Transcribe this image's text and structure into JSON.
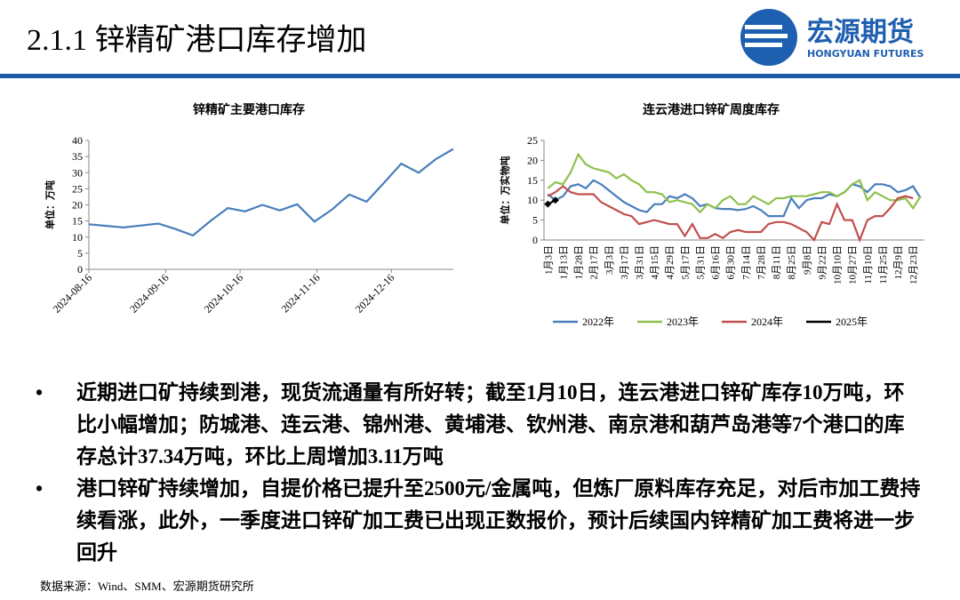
{
  "header": {
    "title": "2.1.1 锌精矿港口库存增加",
    "logo_cn": "宏源期货",
    "logo_en": "HONGYUAN FUTURES"
  },
  "chart_data": [
    {
      "type": "line",
      "title": "锌精矿主要港口库存",
      "y_label": "单位：万吨",
      "color": "#4a7ebb",
      "x": [
        "2024-08-16",
        "2024-08-23",
        "2024-08-30",
        "2024-09-06",
        "2024-09-13",
        "2024-09-20",
        "2024-09-27",
        "2024-10-04",
        "2024-10-11",
        "2024-10-18",
        "2024-10-25",
        "2024-11-01",
        "2024-11-08",
        "2024-11-15",
        "2024-11-22",
        "2024-11-29",
        "2024-12-06",
        "2024-12-13",
        "2024-12-20",
        "2024-12-27",
        "2025-01-03",
        "2025-01-10"
      ],
      "values": [
        14,
        13.5,
        13,
        13.6,
        14.2,
        12.5,
        10.5,
        15,
        19,
        18,
        20,
        18.3,
        20.2,
        14.8,
        18.5,
        23.2,
        21,
        26.8,
        32.8,
        30,
        34.23,
        37.34
      ],
      "xlim": [
        "2024-08-16",
        "2025-01-10"
      ],
      "xticks": [
        "2024-08-16",
        "2024-09-16",
        "2024-10-16",
        "2024-11-16",
        "2024-12-16"
      ],
      "ylim": [
        0,
        40
      ],
      "yticks": [
        0,
        5,
        10,
        15,
        20,
        25,
        30,
        35,
        40
      ],
      "grid": false
    },
    {
      "type": "line",
      "title": "连云港进口锌矿周度库存",
      "y_label": "单位：万实物吨",
      "categories": [
        "1月3日",
        null,
        "1月13日",
        null,
        "1月28日",
        null,
        "2月17日",
        null,
        "3月3日",
        null,
        "3月17日",
        null,
        "3月31日",
        null,
        "4月15日",
        null,
        "4月29日",
        null,
        "5月17日",
        null,
        "5月31日",
        null,
        "6月16日",
        null,
        "6月30日",
        null,
        "7月14日",
        null,
        "7月28日",
        null,
        "8月11日",
        null,
        "8月25日",
        null,
        "9月8日",
        null,
        "9月22日",
        null,
        "10月10日",
        null,
        "10月27日",
        null,
        "11月10日",
        null,
        "11月25日",
        null,
        "12月9日",
        null,
        "12月23日",
        null
      ],
      "series": [
        {
          "name": "2022年",
          "color": "#4a7ebb",
          "values": [
            11.5,
            10,
            11,
            13.5,
            14,
            13,
            15,
            14,
            12.5,
            11,
            9.5,
            8.5,
            7.5,
            7,
            9,
            9,
            11,
            10.5,
            11.5,
            10.5,
            8.5,
            9,
            8,
            7.8,
            7.8,
            7.5,
            7.8,
            8.5,
            7.5,
            6,
            6,
            6,
            10.5,
            8,
            10,
            10.5,
            10.5,
            11.5,
            11,
            12,
            14,
            13.5,
            12,
            14,
            14,
            13.5,
            12,
            12.5,
            13.5,
            10.5
          ]
        },
        {
          "name": "2023年",
          "color": "#8fc04f",
          "values": [
            13,
            14.5,
            14,
            17,
            21.5,
            19,
            18,
            17.5,
            17,
            15.5,
            16.5,
            15,
            14,
            12,
            12,
            11.5,
            9.5,
            10,
            9.5,
            9,
            7,
            9,
            8,
            10,
            11,
            9,
            9,
            11,
            10,
            9,
            10.5,
            10.5,
            11,
            11,
            11,
            11.5,
            12,
            12,
            11,
            12,
            14,
            15,
            10,
            12,
            11,
            10,
            10,
            10.5,
            8,
            11
          ]
        },
        {
          "name": "2024年",
          "color": "#c0504d",
          "values": [
            11,
            12,
            13.5,
            12,
            11.5,
            11.5,
            11.5,
            9.5,
            8.5,
            7.5,
            6.5,
            6,
            4,
            4.5,
            5,
            4.5,
            4,
            4,
            1,
            4,
            0.5,
            0.5,
            1.5,
            0.5,
            2,
            2.5,
            2,
            2,
            2,
            4,
            4.5,
            4.5,
            4,
            3,
            2,
            0,
            4.5,
            4,
            9,
            5,
            5,
            0,
            5,
            6,
            6,
            8,
            10.5,
            11,
            10.5,
            null
          ]
        },
        {
          "name": "2025年",
          "color": "#000000",
          "marker": true,
          "values": [
            9,
            10,
            null,
            null,
            null,
            null,
            null,
            null,
            null,
            null,
            null,
            null,
            null,
            null,
            null,
            null,
            null,
            null,
            null,
            null,
            null,
            null,
            null,
            null,
            null,
            null,
            null,
            null,
            null,
            null,
            null,
            null,
            null,
            null,
            null,
            null,
            null,
            null,
            null,
            null,
            null,
            null,
            null,
            null,
            null,
            null,
            null,
            null,
            null,
            null
          ]
        }
      ],
      "ylim": [
        0,
        25
      ],
      "yticks": [
        0,
        5,
        10,
        15,
        20,
        25
      ],
      "grid": false,
      "legend": "bottom"
    }
  ],
  "bullets": [
    "近期进口矿持续到港，现货流通量有所好转；截至1月10日，连云港进口锌矿库存10万吨，环比小幅增加；防城港、连云港、锦州港、黄埔港、钦州港、南京港和葫芦岛港等7个港口的库存总计37.34万吨，环比上周增加3.11万吨",
    "港口锌矿持续增加，自提价格已提升至2500元/金属吨，但炼厂原料库存充足，对后市加工费持续看涨，此外，一季度进口锌矿加工费已出现正数报价，预计后续国内锌精矿加工费将进一步回升"
  ],
  "source": "数据来源：Wind、SMM、宏源期货研究所"
}
